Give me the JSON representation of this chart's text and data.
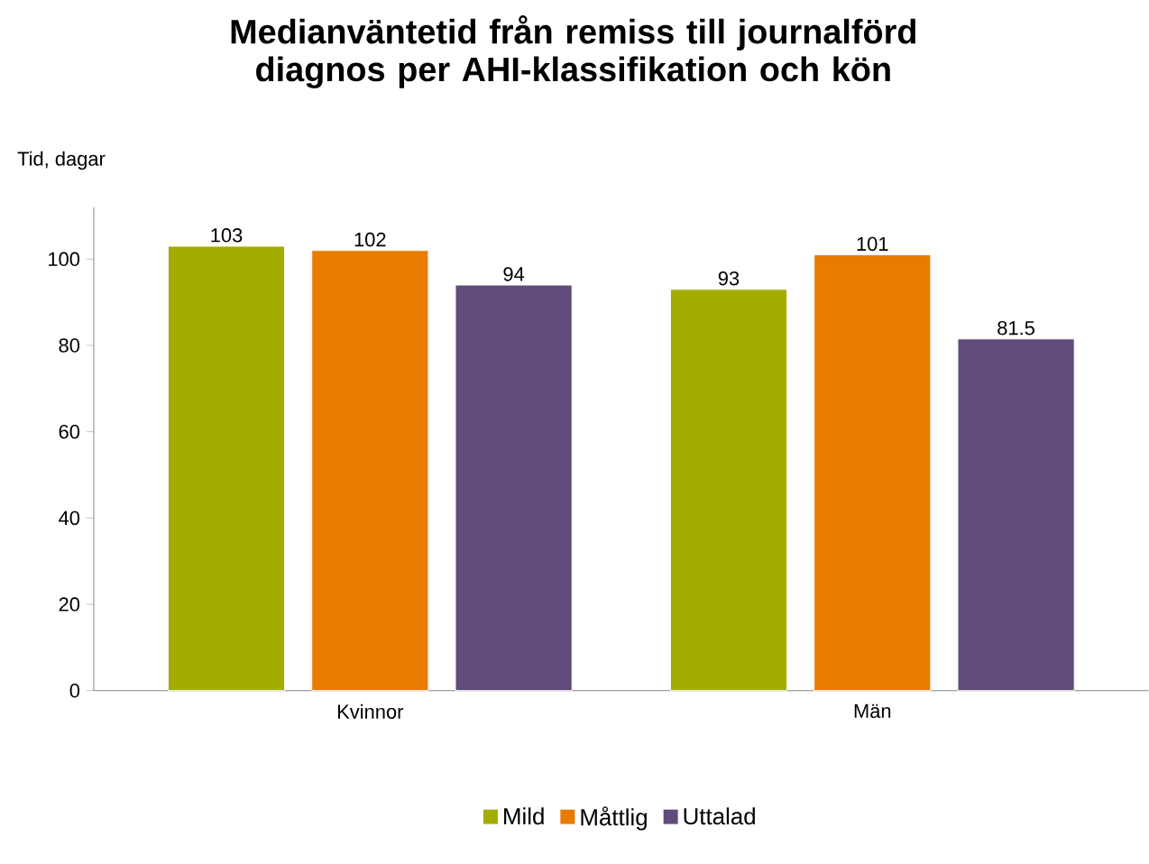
{
  "chart_data": {
    "type": "bar",
    "title": "Medianväntetid från remiss till journalförd diagnos per AHI-klassifikation och kön",
    "ylabel": "Tid, dagar",
    "categories": [
      "Kvinnor",
      "Män"
    ],
    "series": [
      {
        "name": "Mild",
        "color": "#a2ad00",
        "values": [
          103,
          93
        ]
      },
      {
        "name": "Måttlig",
        "color": "#e87b00",
        "values": [
          102,
          101
        ]
      },
      {
        "name": "Uttalad",
        "color": "#604b7a",
        "values": [
          94,
          81.5
        ]
      }
    ],
    "ylim": [
      0,
      112
    ],
    "yticks": [
      0,
      20,
      40,
      60,
      80,
      100
    ],
    "grid": false,
    "legend": "bottom",
    "data_labels": true
  }
}
